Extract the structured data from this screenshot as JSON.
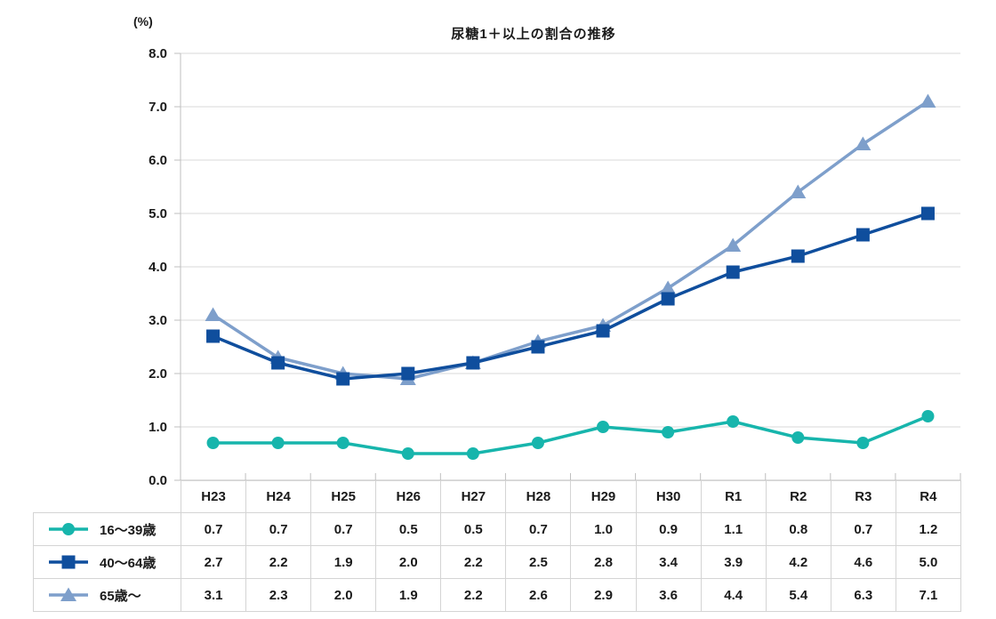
{
  "chart_data": {
    "type": "line",
    "title": "尿糖1＋以上の割合の推移",
    "unit_label": "(%)",
    "categories": [
      "H23",
      "H24",
      "H25",
      "H26",
      "H27",
      "H28",
      "H29",
      "H30",
      "R1",
      "R2",
      "R3",
      "R4"
    ],
    "series": [
      {
        "key": "age-16-39",
        "name": "16～39歳",
        "marker": "circle",
        "color": "#17b5ac",
        "values": [
          0.7,
          0.7,
          0.7,
          0.5,
          0.5,
          0.7,
          1.0,
          0.9,
          1.1,
          0.8,
          0.7,
          1.2
        ]
      },
      {
        "key": "age-40-64",
        "name": "40～64歳",
        "marker": "square",
        "color": "#0f4e9d",
        "values": [
          2.7,
          2.2,
          1.9,
          2.0,
          2.2,
          2.5,
          2.8,
          3.4,
          3.9,
          4.2,
          4.6,
          5.0
        ]
      },
      {
        "key": "age-65-plus",
        "name": "65歳～",
        "marker": "triangle",
        "color": "#7e9fcb",
        "values": [
          3.1,
          2.3,
          2.0,
          1.9,
          2.2,
          2.6,
          2.9,
          3.6,
          4.4,
          5.4,
          6.3,
          7.1
        ]
      }
    ],
    "y_axis": {
      "min": 0,
      "max": 8,
      "step": 1,
      "tick_labels": [
        "0.0",
        "1.0",
        "2.0",
        "3.0",
        "4.0",
        "5.0",
        "6.0",
        "7.0",
        "8.0"
      ]
    },
    "grid": true,
    "legend_position": "table-left",
    "value_decimals": 1,
    "colors": {
      "grid": "#d9d9d9",
      "axis": "#bfbfbf",
      "table_border": "#d4d4d4",
      "text": "#1a1a1a",
      "background": "#ffffff"
    }
  }
}
